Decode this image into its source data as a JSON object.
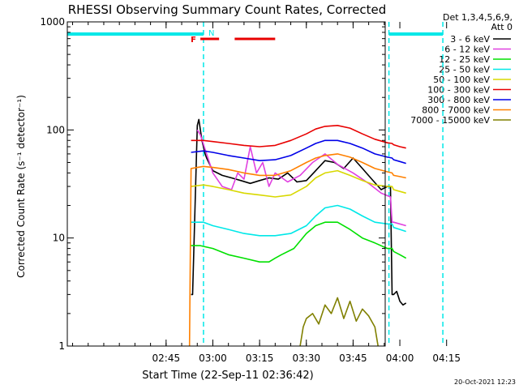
{
  "chart_data": {
    "type": "line",
    "title": "RHESSI Observing Summary Count Rates, Corrected",
    "xlabel": "Start Time (22-Sep-11 02:36:42)",
    "ylabel": "Corrected Count Rate (s⁻¹ detector⁻¹)",
    "y_scale": "log",
    "ylim": [
      1,
      1000
    ],
    "y_ticks": [
      1,
      10,
      100,
      1000
    ],
    "y_tick_labels": [
      "1",
      "10",
      "100",
      "1000"
    ],
    "x_range_minutes": [
      -46.7,
      55.3
    ],
    "x_ticks": [
      {
        "minute": -15,
        "label": "02:45"
      },
      {
        "minute": 0,
        "label": "03:00"
      },
      {
        "minute": 15,
        "label": "03:15"
      },
      {
        "minute": 30,
        "label": "03:30"
      },
      {
        "minute": 45,
        "label": "03:45"
      },
      {
        "minute": 60,
        "label": "04:00"
      },
      {
        "minute": 75,
        "label": "04:15"
      }
    ],
    "x_range_label": [
      "02:36:42",
      "04:18:42"
    ],
    "legend": {
      "header": [
        "Det 1,3,4,5,6,9,",
        "Att 0"
      ],
      "position": "right"
    },
    "series": [
      {
        "name": "3 - 6 keV",
        "color": "#000000",
        "x": [
          -7,
          -6.5,
          -5,
          -4.5,
          -4,
          -3.5,
          -3,
          -2.5,
          -2,
          -1,
          0,
          3,
          6,
          9,
          12,
          15,
          18,
          21,
          24,
          27,
          30,
          33,
          36,
          39,
          42,
          45,
          48,
          51,
          54,
          56,
          57,
          57.5,
          58,
          59,
          60,
          61,
          62
        ],
        "y": [
          3,
          3,
          110,
          125,
          100,
          80,
          70,
          60,
          55,
          48,
          42,
          38,
          36,
          34,
          32,
          34,
          36,
          35,
          40,
          33,
          34,
          42,
          52,
          50,
          44,
          55,
          44,
          35,
          28,
          30,
          30,
          3,
          3,
          3.2,
          2.6,
          2.4,
          2.5
        ]
      },
      {
        "name": "6 - 12 keV",
        "color": "#e040e0",
        "x": [
          -5,
          -4,
          -2,
          0,
          3,
          6,
          8,
          10,
          12,
          14,
          16,
          18,
          20,
          24,
          28,
          32,
          36,
          40,
          45,
          50,
          54,
          57,
          57.5,
          58,
          62
        ],
        "y": [
          100,
          90,
          60,
          40,
          30,
          28,
          40,
          35,
          70,
          40,
          50,
          30,
          40,
          33,
          38,
          50,
          60,
          48,
          40,
          32,
          26,
          24,
          14,
          14,
          13
        ]
      },
      {
        "name": "12 - 25 keV",
        "color": "#00e000",
        "x": [
          -7,
          -4,
          0,
          5,
          10,
          15,
          18,
          20,
          22,
          26,
          30,
          33,
          36,
          40,
          44,
          48,
          52,
          56,
          57.5,
          58,
          60,
          62
        ],
        "y": [
          8.5,
          8.5,
          8,
          7,
          6.5,
          6,
          6,
          6.5,
          7,
          8,
          11,
          13,
          14,
          14,
          12,
          10,
          9,
          8,
          8,
          7.5,
          7,
          6.5
        ]
      },
      {
        "name": "25 - 50 keV",
        "color": "#00e8e8",
        "x": [
          -7,
          -3,
          0,
          5,
          10,
          15,
          20,
          25,
          30,
          33,
          36,
          40,
          44,
          48,
          52,
          56,
          57.5,
          58,
          60,
          62
        ],
        "y": [
          14,
          14,
          13,
          12,
          11,
          10.5,
          10.5,
          11,
          13,
          16,
          19,
          20,
          18.5,
          16,
          14,
          13.5,
          13.5,
          12.5,
          12,
          11.5
        ]
      },
      {
        "name": "50 - 100 keV",
        "color": "#d8d800",
        "x": [
          -7,
          -3,
          0,
          5,
          10,
          15,
          20,
          25,
          30,
          33,
          36,
          40,
          44,
          48,
          52,
          56,
          57.5,
          58,
          60,
          62
        ],
        "y": [
          30,
          31,
          30,
          28,
          26,
          25,
          24,
          25,
          30,
          36,
          40,
          42,
          38,
          34,
          31,
          30,
          30,
          28,
          27,
          26
        ]
      },
      {
        "name": "100 - 300 keV",
        "color": "#e80000",
        "x": [
          -7,
          -3,
          0,
          5,
          10,
          15,
          20,
          25,
          30,
          33,
          36,
          40,
          44,
          48,
          52,
          56,
          57.5,
          58,
          60,
          62
        ],
        "y": [
          80,
          80,
          78,
          75,
          72,
          70,
          72,
          80,
          92,
          102,
          108,
          110,
          104,
          92,
          82,
          76,
          75,
          73,
          70,
          68
        ]
      },
      {
        "name": "300 - 800 keV",
        "color": "#0000e8",
        "x": [
          -7,
          -3,
          0,
          5,
          10,
          15,
          20,
          25,
          30,
          33,
          36,
          40,
          44,
          48,
          52,
          56,
          57.5,
          58,
          60,
          62
        ],
        "y": [
          62,
          64,
          62,
          58,
          55,
          52,
          53,
          58,
          68,
          75,
          80,
          80,
          75,
          68,
          60,
          56,
          55,
          53,
          51,
          49
        ]
      },
      {
        "name": "800 - 7000 keV",
        "color": "#ff8000",
        "x": [
          -7.5,
          -7,
          -3,
          0,
          5,
          10,
          15,
          20,
          25,
          30,
          33,
          36,
          40,
          44,
          48,
          52,
          56,
          57.5,
          58,
          60,
          62
        ],
        "y": [
          1,
          44,
          46,
          45,
          43,
          40,
          38,
          38,
          42,
          50,
          55,
          58,
          60,
          56,
          50,
          44,
          41,
          40,
          38,
          37,
          36
        ]
      },
      {
        "name": "7000 - 15000 keV",
        "color": "#808000",
        "x": [
          28,
          29,
          30,
          32,
          34,
          36,
          38,
          40,
          42,
          44,
          46,
          48,
          50,
          52,
          53
        ],
        "y": [
          1,
          1.5,
          1.8,
          2,
          1.6,
          2.4,
          2,
          2.8,
          1.8,
          2.6,
          1.7,
          2.2,
          1.9,
          1.5,
          1
        ]
      }
    ],
    "flare_flags": {
      "flare_label": "F",
      "night_label": "N",
      "flare_intervals_minutes": [
        [
          -4,
          2
        ],
        [
          7,
          20
        ]
      ],
      "night_lines_minutes": [
        -3,
        56.5,
        73.8
      ],
      "night_bars_minutes": [
        [
          -46.7,
          -3
        ],
        [
          56.5,
          73.8
        ]
      ],
      "flare_color": "#e80000",
      "night_color": "#00e8e8"
    }
  },
  "footer": {
    "timestamp": "20-Oct-2021 12:23"
  }
}
